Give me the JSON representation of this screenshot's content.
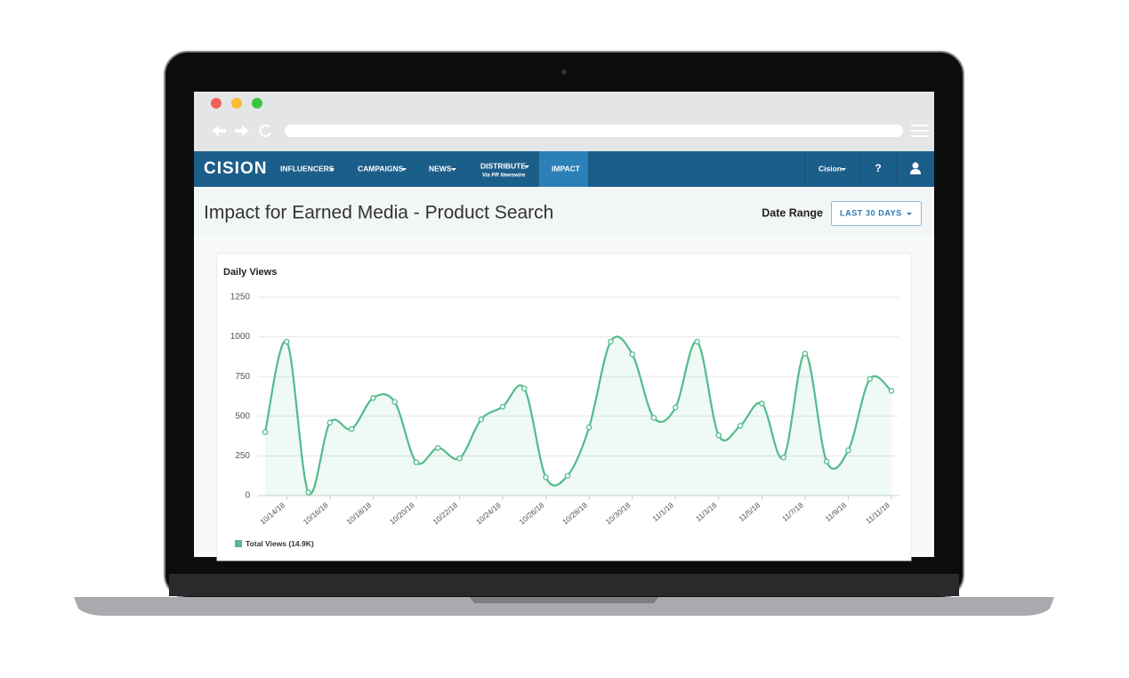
{
  "logo": "CISION",
  "nav": {
    "items": [
      "INFLUENCERS",
      "CAMPAIGNS",
      "NEWS",
      "DISTRIBUTE",
      "IMPACT"
    ],
    "distribute_subtitle": "Via PR Newswire",
    "account": "Cision",
    "help": "?"
  },
  "header": {
    "title": "Impact for Earned Media - Product Search",
    "date_range_label": "Date Range",
    "date_range_button": "LAST 30 DAYS"
  },
  "chart_data": {
    "type": "line",
    "title": "Daily Views",
    "categories": [
      null,
      "10/14/18",
      null,
      "10/16/18",
      null,
      "10/18/18",
      null,
      "10/20/18",
      null,
      "10/22/18",
      null,
      "10/24/18",
      null,
      "10/26/18",
      null,
      "10/28/18",
      null,
      "10/30/18",
      null,
      "11/1/18",
      null,
      "11/3/18",
      null,
      "11/5/18",
      null,
      "11/7/18",
      null,
      "11/9/18",
      null,
      "11/11/18"
    ],
    "series": [
      {
        "name": "Total Views (14.9K)",
        "color": "#52bb8b",
        "values": [
          400,
          970,
          20,
          460,
          420,
          615,
          590,
          210,
          300,
          235,
          480,
          560,
          675,
          115,
          125,
          430,
          970,
          890,
          490,
          555,
          970,
          380,
          440,
          580,
          240,
          895,
          215,
          285,
          735,
          660
        ]
      }
    ],
    "ylim": [
      0,
      1250
    ],
    "yticks": [
      0,
      250,
      500,
      750,
      1000,
      1250
    ],
    "grid": true,
    "smooth": true,
    "area": true,
    "legend": "bottom-left"
  }
}
